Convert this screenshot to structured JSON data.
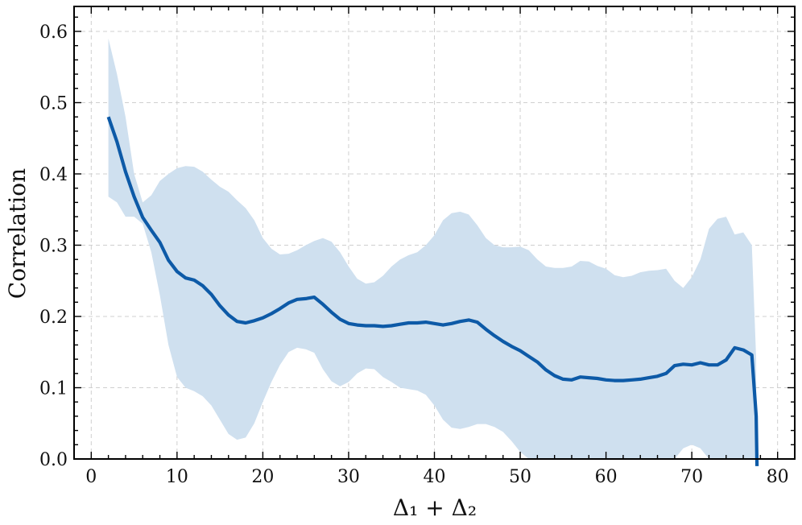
{
  "chart_data": {
    "type": "line",
    "xlabel": "Δ₁ + Δ₂",
    "ylabel": "Correlation",
    "xlim": [
      -2,
      82
    ],
    "ylim": [
      0,
      0.635
    ],
    "xticks": [
      0,
      10,
      20,
      30,
      40,
      50,
      60,
      70,
      80
    ],
    "xtick_labels": [
      "0",
      "10",
      "20",
      "30",
      "40",
      "50",
      "60",
      "70",
      "80"
    ],
    "yticks": [
      0.0,
      0.1,
      0.2,
      0.3,
      0.4,
      0.5,
      0.6
    ],
    "ytick_labels": [
      "0.0",
      "0.1",
      "0.2",
      "0.3",
      "0.4",
      "0.5",
      "0.6"
    ],
    "grid": true,
    "colors": {
      "line": "#0d5aa7",
      "band": "#cfe0ef"
    },
    "series": [
      {
        "x": [
          2,
          3,
          4,
          5,
          6,
          7,
          8,
          9,
          10,
          11,
          12,
          13,
          14,
          15,
          16,
          17,
          18,
          19,
          20,
          21,
          22,
          23,
          24,
          25,
          26,
          27,
          28,
          29,
          30,
          31,
          32,
          33,
          34,
          35,
          36,
          37,
          38,
          39,
          40,
          41,
          42,
          43,
          44,
          45,
          46,
          47,
          48,
          49,
          50,
          51,
          52,
          53,
          54,
          55,
          56,
          57,
          58,
          59,
          60,
          61,
          62,
          63,
          64,
          65,
          66,
          67,
          68,
          69,
          70,
          71,
          72,
          73,
          74,
          75,
          76,
          77,
          77.5
        ],
        "y": [
          0.48,
          0.445,
          0.403,
          0.368,
          0.339,
          0.321,
          0.304,
          0.279,
          0.263,
          0.254,
          0.251,
          0.243,
          0.231,
          0.215,
          0.202,
          0.193,
          0.191,
          0.194,
          0.198,
          0.204,
          0.211,
          0.219,
          0.224,
          0.225,
          0.227,
          0.217,
          0.206,
          0.196,
          0.19,
          0.188,
          0.187,
          0.187,
          0.186,
          0.187,
          0.189,
          0.191,
          0.191,
          0.192,
          0.19,
          0.188,
          0.19,
          0.193,
          0.195,
          0.192,
          0.182,
          0.173,
          0.165,
          0.158,
          0.152,
          0.144,
          0.136,
          0.125,
          0.117,
          0.112,
          0.111,
          0.115,
          0.114,
          0.113,
          0.111,
          0.11,
          0.11,
          0.111,
          0.112,
          0.114,
          0.116,
          0.12,
          0.131,
          0.133,
          0.132,
          0.135,
          0.132,
          0.132,
          0.139,
          0.156,
          0.153,
          0.146,
          0.06
        ],
        "lower": [
          0.368,
          0.36,
          0.34,
          0.34,
          0.33,
          0.29,
          0.23,
          0.16,
          0.115,
          0.1,
          0.095,
          0.088,
          0.075,
          0.055,
          0.035,
          0.027,
          0.03,
          0.05,
          0.08,
          0.108,
          0.132,
          0.15,
          0.156,
          0.154,
          0.149,
          0.126,
          0.109,
          0.102,
          0.108,
          0.12,
          0.127,
          0.126,
          0.115,
          0.108,
          0.1,
          0.098,
          0.096,
          0.09,
          0.075,
          0.055,
          0.044,
          0.042,
          0.045,
          0.049,
          0.049,
          0.045,
          0.038,
          0.025,
          0.01,
          0,
          0,
          0,
          0,
          0,
          0,
          0,
          0,
          0,
          0,
          0,
          0,
          0,
          0,
          0,
          0,
          0,
          0,
          0.015,
          0.02,
          0.015,
          0,
          0,
          0,
          0,
          0,
          0,
          0
        ],
        "upper": [
          0.59,
          0.54,
          0.48,
          0.4,
          0.36,
          0.37,
          0.39,
          0.4,
          0.408,
          0.411,
          0.41,
          0.403,
          0.392,
          0.382,
          0.375,
          0.363,
          0.352,
          0.335,
          0.31,
          0.295,
          0.287,
          0.288,
          0.293,
          0.3,
          0.306,
          0.31,
          0.305,
          0.29,
          0.27,
          0.253,
          0.246,
          0.248,
          0.257,
          0.27,
          0.28,
          0.286,
          0.29,
          0.3,
          0.314,
          0.335,
          0.345,
          0.347,
          0.343,
          0.328,
          0.31,
          0.3,
          0.297,
          0.297,
          0.298,
          0.293,
          0.28,
          0.27,
          0.268,
          0.268,
          0.27,
          0.278,
          0.277,
          0.271,
          0.267,
          0.258,
          0.255,
          0.257,
          0.262,
          0.264,
          0.265,
          0.267,
          0.25,
          0.24,
          0.255,
          0.28,
          0.323,
          0.337,
          0.34,
          0.315,
          0.318,
          0.3,
          0.14
        ]
      }
    ]
  }
}
